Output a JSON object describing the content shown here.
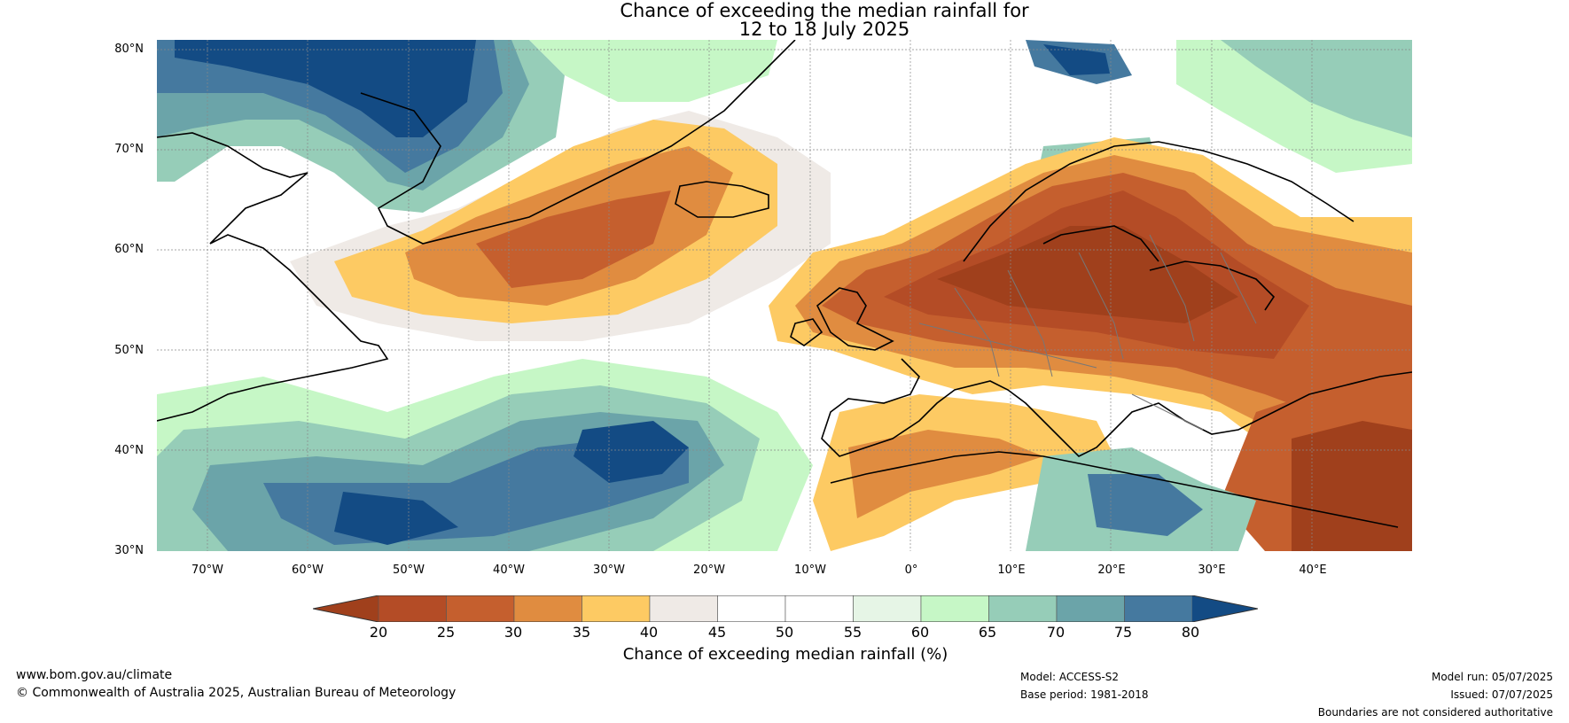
{
  "title": {
    "line1": "Chance of exceeding the median rainfall for",
    "line2": "12 to 18 July 2025"
  },
  "map": {
    "lat_labels": [
      "80°N",
      "70°N",
      "60°N",
      "50°N",
      "40°N",
      "30°N"
    ],
    "lon_labels": [
      "70°W",
      "60°W",
      "50°W",
      "40°W",
      "30°W",
      "20°W",
      "10°W",
      "0°",
      "10°E",
      "20°E",
      "30°E",
      "40°E"
    ]
  },
  "colorbar": {
    "ticks": [
      "20",
      "25",
      "30",
      "35",
      "40",
      "45",
      "50",
      "55",
      "60",
      "65",
      "70",
      "75",
      "80"
    ],
    "colors": [
      "#a0401c",
      "#b44c26",
      "#c55f2e",
      "#e08c40",
      "#fdca63",
      "#efeae6",
      "#ffffff",
      "#ffffff",
      "#e6f5e6",
      "#c6f7c6",
      "#96cdb8",
      "#6ba4a9",
      "#45799f",
      "#134b84"
    ],
    "label": "Chance of exceeding median rainfall (%)"
  },
  "footer": {
    "website": "www.bom.gov.au/climate",
    "copyright": "© Commonwealth of Australia 2025, Australian Bureau of Meteorology",
    "model": "Model: ACCESS-S2",
    "base_period": "Base period: 1981-2018",
    "model_run": "Model run: 05/07/2025",
    "issued": "Issued: 07/07/2025",
    "disclaimer": "Boundaries are not considered authoritative"
  }
}
